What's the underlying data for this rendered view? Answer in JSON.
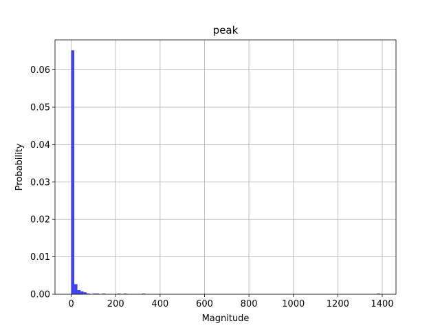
{
  "chart_data": {
    "type": "bar",
    "title": "peak",
    "xlabel": "Magnitude",
    "ylabel": "Probability",
    "xlim": [
      -73,
      1462
    ],
    "ylim": [
      0,
      0.068
    ],
    "xticks": [
      0,
      200,
      400,
      600,
      800,
      1000,
      1200,
      1400
    ],
    "yticks": [
      0.0,
      0.01,
      0.02,
      0.03,
      0.04,
      0.05,
      0.06
    ],
    "ytick_labels": [
      "0.00",
      "0.01",
      "0.02",
      "0.03",
      "0.04",
      "0.05",
      "0.06"
    ],
    "grid": true,
    "bar_color": "#4040f0",
    "bin_width": 13.9,
    "bins": [
      {
        "x": 0,
        "value": 0.0652
      },
      {
        "x": 13.9,
        "value": 0.0027
      },
      {
        "x": 27.8,
        "value": 0.0011
      },
      {
        "x": 41.7,
        "value": 0.0008
      },
      {
        "x": 55.6,
        "value": 0.0005
      },
      {
        "x": 69.5,
        "value": 0.0002
      },
      {
        "x": 97.3,
        "value": 0.0002
      },
      {
        "x": 111.2,
        "value": 0.0002
      },
      {
        "x": 139.0,
        "value": 0.0002
      },
      {
        "x": 208.5,
        "value": 0.0002
      },
      {
        "x": 236.3,
        "value": 0.0002
      },
      {
        "x": 319.7,
        "value": 0.0002
      },
      {
        "x": 1376.1,
        "value": 0.0002
      }
    ]
  }
}
